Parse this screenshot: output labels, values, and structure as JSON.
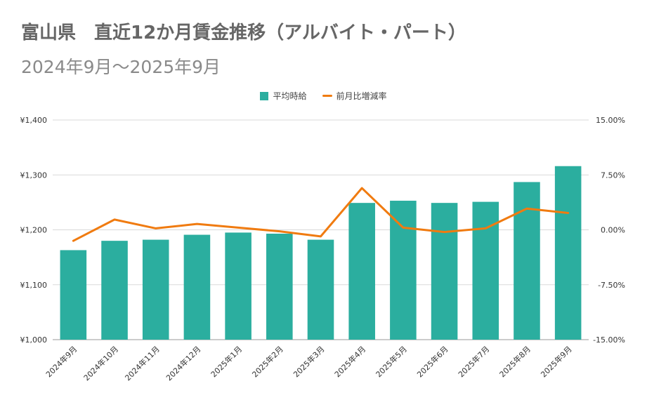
{
  "title": "富山県　直近12か月賃金推移（アルバイト・パート）",
  "subtitle": "2024年9月〜2025年9月",
  "colors": {
    "bar": "#2bae9f",
    "line": "#f07b10",
    "grid": "#d9d9d9"
  },
  "chart_data": {
    "type": "bar",
    "legend_position": "top",
    "grid": true,
    "categories": [
      "2024年9月",
      "2024年10月",
      "2024年11月",
      "2024年12月",
      "2025年1月",
      "2025年2月",
      "2025年3月",
      "2025年4月",
      "2025年5月",
      "2025年6月",
      "2025年7月",
      "2025年8月",
      "2025年9月"
    ],
    "series": [
      {
        "name": "平均時給",
        "type": "bar",
        "axis": "left",
        "values": [
          1163,
          1180,
          1182,
          1191,
          1195,
          1193,
          1182,
          1249,
          1253,
          1249,
          1251,
          1287,
          1316
        ]
      },
      {
        "name": "前月比増減率",
        "type": "line",
        "axis": "right",
        "values": [
          -1.5,
          1.4,
          0.2,
          0.8,
          0.3,
          -0.2,
          -0.9,
          5.7,
          0.3,
          -0.3,
          0.2,
          2.9,
          2.3
        ]
      }
    ],
    "y_left": {
      "range": [
        1000,
        1400
      ],
      "ticks": [
        "¥1,000",
        "¥1,100",
        "¥1,200",
        "¥1,300",
        "¥1,400"
      ]
    },
    "y_right": {
      "range": [
        -15,
        15
      ],
      "ticks": [
        "-15.00%",
        "-7.50%",
        "0.00%",
        "7.50%",
        "15.00%"
      ]
    }
  }
}
